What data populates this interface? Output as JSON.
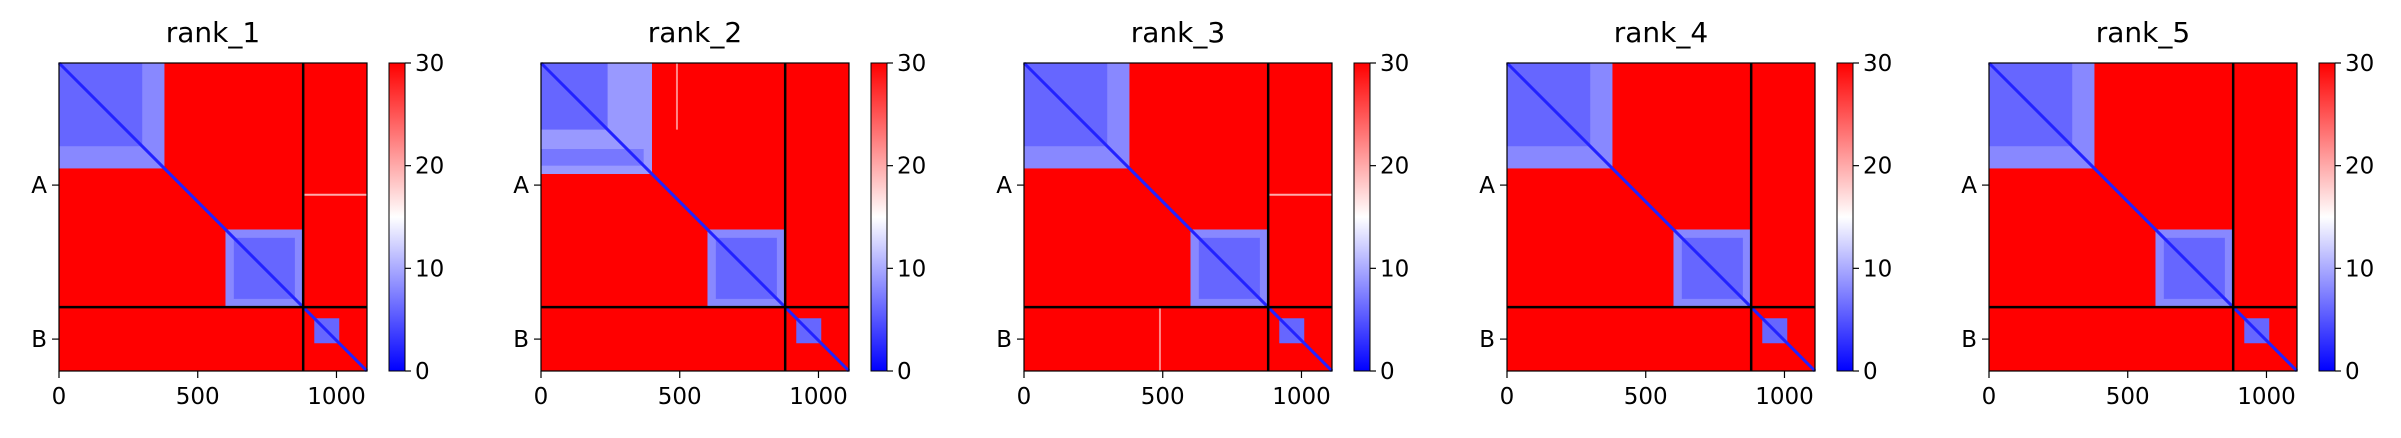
{
  "chart_data": {
    "type": "heatmap",
    "colormap": {
      "name": "bwr",
      "low": "#0000ff",
      "mid": "#ffffff",
      "high": "#ff0000"
    },
    "value_range": [
      0,
      30
    ],
    "colorbar_ticks": [
      "0",
      "10",
      "20",
      "30"
    ],
    "x_range": [
      0,
      1110
    ],
    "x_ticks": [
      0,
      500,
      1000
    ],
    "x_tick_labels": [
      "0",
      "500",
      "1000"
    ],
    "chain_boundary": 880,
    "y_tick_labels": [
      "A",
      "B"
    ],
    "y_tick_positions": [
      440,
      995
    ],
    "panels": [
      {
        "title": "rank_1",
        "blocks": [
          {
            "r": [
              0,
              380
            ],
            "c": [
              0,
              380
            ],
            "v": 8
          },
          {
            "r": [
              0,
              300
            ],
            "c": [
              0,
              300
            ],
            "v": 6
          },
          {
            "r": [
              600,
              880
            ],
            "c": [
              600,
              880
            ],
            "v": 8
          },
          {
            "r": [
              630,
              850
            ],
            "c": [
              630,
              850
            ],
            "v": 6
          },
          {
            "r": [
              920,
              1010
            ],
            "c": [
              920,
              1010
            ],
            "v": 6
          }
        ],
        "lines": [
          {
            "axis": "row",
            "pos": 475,
            "span": [
              880,
              1110
            ],
            "v": 20
          }
        ]
      },
      {
        "title": "rank_2",
        "blocks": [
          {
            "r": [
              0,
              400
            ],
            "c": [
              0,
              400
            ],
            "v": 9
          },
          {
            "r": [
              0,
              240
            ],
            "c": [
              0,
              240
            ],
            "v": 6
          },
          {
            "r": [
              310,
              370
            ],
            "c": [
              0,
              370
            ],
            "v": 7
          },
          {
            "r": [
              600,
              880
            ],
            "c": [
              600,
              880
            ],
            "v": 8
          },
          {
            "r": [
              630,
              850
            ],
            "c": [
              630,
              850
            ],
            "v": 6
          },
          {
            "r": [
              920,
              1010
            ],
            "c": [
              920,
              1010
            ],
            "v": 6
          }
        ],
        "lines": [
          {
            "axis": "col",
            "pos": 490,
            "span": [
              0,
              240
            ],
            "v": 22
          }
        ]
      },
      {
        "title": "rank_3",
        "blocks": [
          {
            "r": [
              0,
              380
            ],
            "c": [
              0,
              380
            ],
            "v": 8
          },
          {
            "r": [
              0,
              300
            ],
            "c": [
              0,
              300
            ],
            "v": 6
          },
          {
            "r": [
              600,
              880
            ],
            "c": [
              600,
              880
            ],
            "v": 8
          },
          {
            "r": [
              630,
              850
            ],
            "c": [
              630,
              850
            ],
            "v": 6
          },
          {
            "r": [
              920,
              1010
            ],
            "c": [
              920,
              1010
            ],
            "v": 6
          }
        ],
        "lines": [
          {
            "axis": "row",
            "pos": 475,
            "span": [
              880,
              1110
            ],
            "v": 20
          },
          {
            "axis": "col",
            "pos": 490,
            "span": [
              880,
              1110
            ],
            "v": 22
          }
        ]
      },
      {
        "title": "rank_4",
        "blocks": [
          {
            "r": [
              0,
              380
            ],
            "c": [
              0,
              380
            ],
            "v": 8
          },
          {
            "r": [
              0,
              300
            ],
            "c": [
              0,
              300
            ],
            "v": 6
          },
          {
            "r": [
              600,
              880
            ],
            "c": [
              600,
              880
            ],
            "v": 8
          },
          {
            "r": [
              630,
              850
            ],
            "c": [
              630,
              850
            ],
            "v": 6
          },
          {
            "r": [
              920,
              1010
            ],
            "c": [
              920,
              1010
            ],
            "v": 6
          }
        ],
        "lines": []
      },
      {
        "title": "rank_5",
        "blocks": [
          {
            "r": [
              0,
              380
            ],
            "c": [
              0,
              380
            ],
            "v": 8
          },
          {
            "r": [
              0,
              300
            ],
            "c": [
              0,
              300
            ],
            "v": 6
          },
          {
            "r": [
              600,
              880
            ],
            "c": [
              600,
              880
            ],
            "v": 8
          },
          {
            "r": [
              630,
              850
            ],
            "c": [
              630,
              850
            ],
            "v": 6
          },
          {
            "r": [
              920,
              1010
            ],
            "c": [
              920,
              1010
            ],
            "v": 6
          }
        ],
        "lines": []
      }
    ]
  }
}
